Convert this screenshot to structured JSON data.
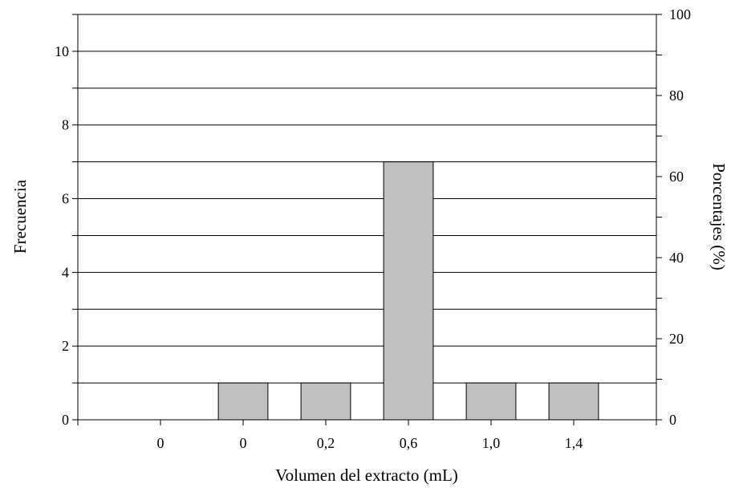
{
  "chart_data": {
    "type": "bar",
    "title": "",
    "xlabel": "Volumen del extracto (mL)",
    "ylabel": "Frecuencia",
    "y2label": "Porcentajes (%)",
    "categories": [
      "0",
      "0",
      "0,2",
      "0,6",
      "1,0",
      "1,4"
    ],
    "values": [
      0,
      1,
      1,
      7,
      1,
      1
    ],
    "ylim": [
      0,
      11
    ],
    "y_ticks": [
      0,
      2,
      4,
      6,
      8,
      10
    ],
    "y2lim": [
      0,
      100
    ],
    "y2_ticks": [
      0,
      20,
      40,
      60,
      80,
      100
    ],
    "grid": true,
    "bar_color": "#c0c0c0"
  }
}
